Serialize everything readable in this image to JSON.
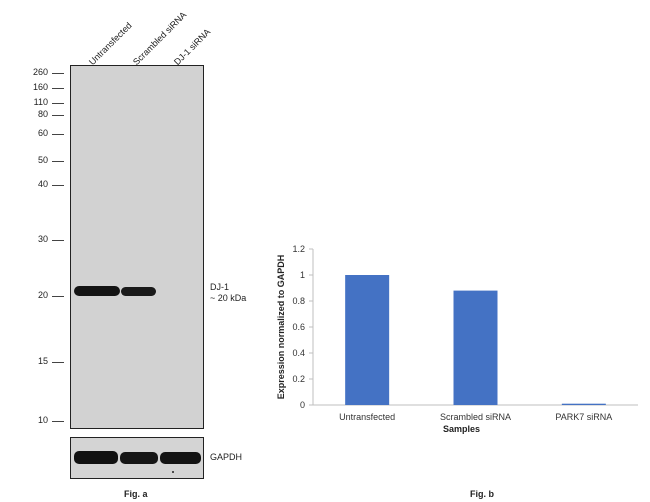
{
  "blot": {
    "lanes": [
      "Untransfected",
      "Scrambled siRNA",
      "DJ-1 siRNA"
    ],
    "mw_markers": [
      "260",
      "160",
      "110",
      "80",
      "60",
      "50",
      "40",
      "30",
      "20",
      "15",
      "10"
    ],
    "band_label_line1": "DJ-1",
    "band_label_line2": "~ 20 kDa",
    "loading_label": "GAPDH",
    "caption": "Fig. a"
  },
  "chart_data": {
    "type": "bar",
    "categories": [
      "Untransfected",
      "Scrambled siRNA",
      "PARK7 siRNA"
    ],
    "values": [
      1.0,
      0.88,
      0.01
    ],
    "xlabel": "Samples",
    "ylabel": "Expression normalized to GAPDH",
    "ylim": [
      0,
      1.2
    ],
    "yticks": [
      "0",
      "0.2",
      "0.4",
      "0.6",
      "0.8",
      "1",
      "1.2"
    ],
    "bar_color": "#4472c4",
    "grid": false,
    "caption": "Fig. b"
  }
}
